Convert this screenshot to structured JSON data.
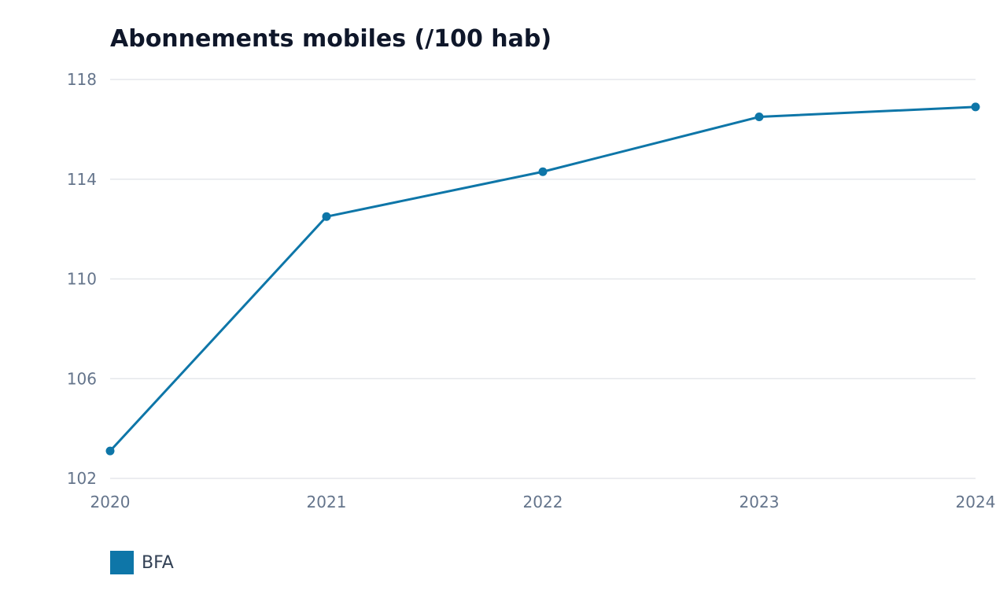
{
  "chart_data": {
    "type": "line",
    "title": "Abonnements mobiles (/100 hab)",
    "xlabel": "",
    "ylabel": "",
    "x": [
      "2020",
      "2021",
      "2022",
      "2023",
      "2024"
    ],
    "series": [
      {
        "name": "BFA",
        "values": [
          103.1,
          112.5,
          114.3,
          116.5,
          116.9
        ],
        "color": "#0e76a8"
      }
    ],
    "ylim": [
      102,
      118
    ],
    "yticks": [
      "102",
      "106",
      "110",
      "114",
      "118"
    ],
    "grid": true,
    "legend_position": "bottom-left",
    "colors": {
      "grid": "#e5e7eb",
      "tick_text": "#64748b",
      "title_text": "#0f172a",
      "legend_text": "#334155"
    }
  }
}
